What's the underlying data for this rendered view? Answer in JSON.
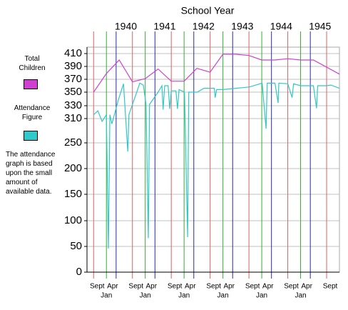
{
  "chart_data": {
    "type": "line",
    "title": "School Year",
    "annotation": "The attendance graph is based upon the small amount of available data.",
    "xlim": [
      1939.5,
      1946.0
    ],
    "ylim": [
      0,
      410
    ],
    "yticks": [
      0,
      50,
      100,
      150,
      200,
      250,
      310,
      330,
      350,
      370,
      390,
      410
    ],
    "grid": true,
    "xtick_colors": [
      "#e06060",
      "#30b030",
      "#2828a8"
    ],
    "xticks": [
      {
        "value": 1939.67,
        "label": "Sept"
      },
      {
        "value": 1940.0,
        "label": "Jan"
      },
      {
        "value": 1940.25,
        "label": "Apr"
      },
      {
        "value": 1940.67,
        "label": "Sept"
      },
      {
        "value": 1941.0,
        "label": "Jan"
      },
      {
        "value": 1941.25,
        "label": "Apr"
      },
      {
        "value": 1941.67,
        "label": "Sept"
      },
      {
        "value": 1942.0,
        "label": "Jan"
      },
      {
        "value": 1942.25,
        "label": "Apr"
      },
      {
        "value": 1942.67,
        "label": "Sept"
      },
      {
        "value": 1943.0,
        "label": "Jan"
      },
      {
        "value": 1943.25,
        "label": "Apr"
      },
      {
        "value": 1943.67,
        "label": "Sept"
      },
      {
        "value": 1944.0,
        "label": "Jan"
      },
      {
        "value": 1944.25,
        "label": "Apr"
      },
      {
        "value": 1944.67,
        "label": "Sept"
      },
      {
        "value": 1945.0,
        "label": "Jan"
      },
      {
        "value": 1945.25,
        "label": "Apr"
      },
      {
        "value": 1945.67,
        "label": "Sept"
      }
    ],
    "year_ticks": [
      {
        "value": 1940.5,
        "label": "1940"
      },
      {
        "value": 1941.5,
        "label": "1941"
      },
      {
        "value": 1942.5,
        "label": "1942"
      },
      {
        "value": 1943.5,
        "label": "1943"
      },
      {
        "value": 1944.5,
        "label": "1944"
      },
      {
        "value": 1945.5,
        "label": "1945"
      }
    ],
    "series": [
      {
        "name": "Total Children",
        "color": "#d040d0",
        "x": [
          1939.67,
          1940.0,
          1940.33,
          1940.67,
          1941.0,
          1941.33,
          1941.67,
          1942.0,
          1942.33,
          1942.67,
          1943.0,
          1943.33,
          1943.67,
          1944.0,
          1944.33,
          1944.67,
          1945.0,
          1945.33,
          1946.0
        ],
        "values": [
          350,
          379,
          400,
          366,
          371,
          386,
          367,
          367,
          387,
          381,
          409,
          409,
          407,
          400,
          400,
          402,
          400,
          400,
          378
        ]
      },
      {
        "name": "Attendance Figure",
        "color": "#30c8c8",
        "x": [
          1939.67,
          1939.78,
          1939.89,
          1940.0,
          1940.05,
          1940.09,
          1940.14,
          1940.31,
          1940.44,
          1940.55,
          1940.58,
          1940.86,
          1940.95,
          1941.02,
          1941.08,
          1941.11,
          1941.33,
          1941.43,
          1941.46,
          1941.5,
          1941.59,
          1941.63,
          1941.67,
          1941.79,
          1941.83,
          1941.87,
          1942.01,
          1942.09,
          1942.12,
          1942.34,
          1942.51,
          1942.78,
          1942.8,
          1942.84,
          1943.0,
          1943.68,
          1944.01,
          1944.11,
          1944.14,
          1944.34,
          1944.42,
          1944.44,
          1944.67,
          1944.78,
          1944.82,
          1945.0,
          1945.33,
          1945.41,
          1945.44,
          1945.67,
          1945.78,
          1946.0
        ],
        "values": [
          316,
          322,
          303,
          316,
          46,
          316,
          297,
          339,
          363,
          233,
          316,
          364,
          361,
          332,
          66,
          332,
          350,
          360,
          324,
          360,
          360,
          325,
          352,
          352,
          325,
          354,
          350,
          68,
          350,
          350,
          356,
          356,
          342,
          354,
          354,
          358,
          364,
          285,
          364,
          364,
          334,
          364,
          363,
          342,
          363,
          360,
          360,
          326,
          360,
          360,
          361,
          356
        ]
      }
    ]
  }
}
